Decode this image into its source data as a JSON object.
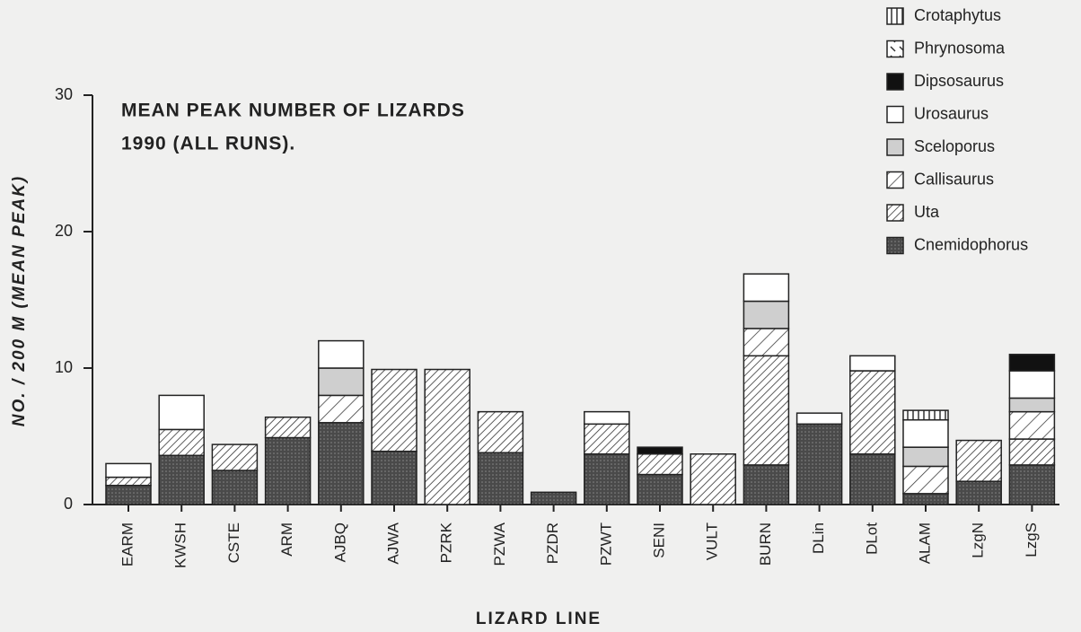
{
  "chart_data": {
    "type": "stacked_bar",
    "title": [
      "MEAN PEAK NUMBER OF LIZARDS",
      "1990  (ALL  RUNS)."
    ],
    "x_label": "LIZARD LINE",
    "y_label": "NO. / 200 M (MEAN PEAK)",
    "categories": [
      "EARM",
      "KWSH",
      "CSTE",
      "ARM",
      "AJBQ",
      "AJWA",
      "PZRK",
      "PZWA",
      "PZDR",
      "PZWT",
      "SENI",
      "VULT",
      "BURN",
      "DLin",
      "DLot",
      "ALAM",
      "LzgN",
      "LzgS"
    ],
    "ylim": [
      0,
      30
    ],
    "yticks": [
      0,
      10,
      20,
      30
    ],
    "legend": "top-right",
    "series": [
      {
        "name": "Cnemidophorus",
        "color": "#4a4a4a",
        "values": [
          1.4,
          3.6,
          2.5,
          4.9,
          6,
          3.9,
          null,
          3.8,
          0.9,
          3.7,
          2.2,
          null,
          2.9,
          5.9,
          3.7,
          0.8,
          1.7,
          2.9
        ]
      },
      {
        "name": "Uta",
        "color": "#ffffff",
        "values": [
          0.6,
          1.9,
          1.9,
          1.5,
          null,
          6,
          9.9,
          3,
          null,
          2.2,
          1.5,
          3.7,
          8,
          null,
          6.1,
          null,
          3,
          1.9
        ]
      },
      {
        "name": "Callisaurus",
        "color": "#ffffff",
        "values": [
          null,
          null,
          null,
          null,
          2,
          null,
          null,
          null,
          null,
          null,
          null,
          null,
          2,
          null,
          null,
          2,
          null,
          2
        ]
      },
      {
        "name": "Sceloporus",
        "color": "#cfcfcf",
        "values": [
          null,
          null,
          null,
          null,
          2,
          null,
          null,
          null,
          null,
          null,
          null,
          null,
          2,
          null,
          null,
          1.4,
          null,
          1
        ]
      },
      {
        "name": "Urosaurus",
        "color": "#ffffff",
        "values": [
          1,
          2.5,
          null,
          null,
          2,
          null,
          null,
          null,
          null,
          0.9,
          null,
          null,
          2,
          0.8,
          1.1,
          2,
          null,
          2
        ]
      },
      {
        "name": "Dipsosaurus",
        "color": "#111111",
        "values": [
          null,
          null,
          null,
          null,
          null,
          null,
          null,
          null,
          null,
          null,
          0.5,
          null,
          null,
          null,
          null,
          null,
          null,
          1.2
        ]
      },
      {
        "name": "Phrynosoma",
        "color": "#ffffff",
        "values": [
          null,
          null,
          null,
          null,
          null,
          null,
          null,
          null,
          null,
          null,
          null,
          null,
          null,
          null,
          null,
          null,
          null,
          null
        ]
      },
      {
        "name": "Crotaphytus",
        "color": "#ffffff",
        "values": [
          null,
          null,
          null,
          null,
          null,
          null,
          null,
          null,
          null,
          null,
          null,
          null,
          null,
          null,
          null,
          0.7,
          null,
          null
        ]
      }
    ]
  }
}
